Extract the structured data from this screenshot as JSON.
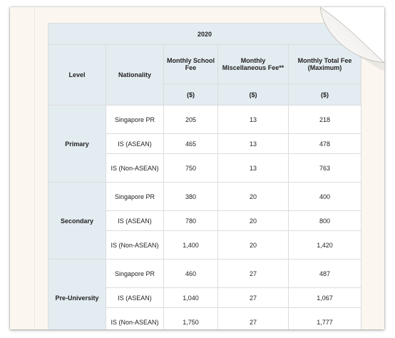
{
  "table": {
    "year": "2020",
    "headers": {
      "level": "Level",
      "nationality": "Nationality",
      "school_fee": "Monthly School Fee",
      "misc_fee": "Monthly Miscellaneous Fee**",
      "total_fee": "Monthly Total Fee (Maximum)"
    },
    "units": {
      "school_fee": "($)",
      "misc_fee": "($)",
      "total_fee": "($)"
    },
    "groups": [
      {
        "level": "Primary",
        "rows": [
          {
            "nationality": "Singapore PR",
            "school": "205",
            "misc": "13",
            "total": "218"
          },
          {
            "nationality": "IS (ASEAN)",
            "school": "465",
            "misc": "13",
            "total": "478"
          },
          {
            "nationality": "IS (Non-ASEAN)",
            "school": "750",
            "misc": "13",
            "total": "763"
          }
        ]
      },
      {
        "level": "Secondary",
        "rows": [
          {
            "nationality": "Singapore PR",
            "school": "380",
            "misc": "20",
            "total": "400"
          },
          {
            "nationality": "IS (ASEAN)",
            "school": "780",
            "misc": "20",
            "total": "800"
          },
          {
            "nationality": "IS (Non-ASEAN)",
            "school": "1,400",
            "misc": "20",
            "total": "1,420"
          }
        ]
      },
      {
        "level": "Pre-University",
        "rows": [
          {
            "nationality": "Singapore PR",
            "school": "460",
            "misc": "27",
            "total": "487"
          },
          {
            "nationality": "IS (ASEAN)",
            "school": "1,040",
            "misc": "27",
            "total": "1,067"
          },
          {
            "nationality": "IS (Non-ASEAN)",
            "school": "1,750",
            "misc": "27",
            "total": "1,777"
          }
        ]
      }
    ]
  }
}
